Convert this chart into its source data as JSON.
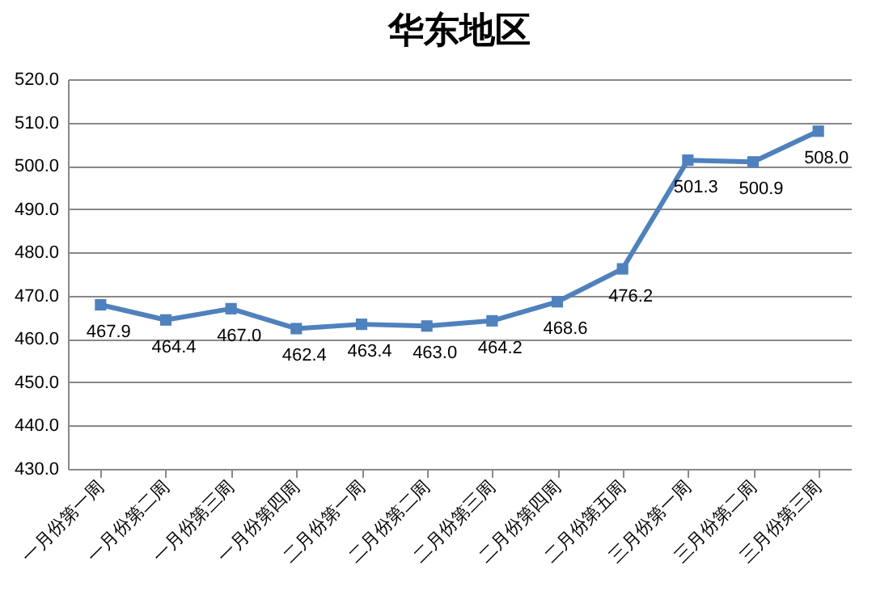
{
  "chart_data": {
    "type": "line",
    "title": "华东地区",
    "categories": [
      "一月份第一周",
      "一月份第二周",
      "一月份第三周",
      "一月份第四周",
      "二月份第一周",
      "二月份第二周",
      "二月份第三周",
      "二月份第四周",
      "二月份第五周",
      "三月份第一周",
      "三月份第二周",
      "三月份第三周"
    ],
    "series": [
      {
        "color": "#4f81bd",
        "values": [
          467.9,
          464.4,
          467.0,
          462.4,
          463.4,
          463.0,
          464.2,
          468.6,
          476.2,
          501.3,
          500.9,
          508.0
        ],
        "value_labels": [
          "467.9",
          "464.4",
          "467.0",
          "462.4",
          "463.4",
          "463.0",
          "464.2",
          "468.6",
          "476.2",
          "501.3",
          "500.9",
          "508.0"
        ]
      }
    ],
    "ylim": [
      430,
      520
    ],
    "yticks": [
      {
        "value": 430,
        "label": "430.0"
      },
      {
        "value": 440,
        "label": "440.0"
      },
      {
        "value": 450,
        "label": "450.0"
      },
      {
        "value": 460,
        "label": "460.0"
      },
      {
        "value": 470,
        "label": "470.0"
      },
      {
        "value": 480,
        "label": "480.0"
      },
      {
        "value": 490,
        "label": "490.0"
      },
      {
        "value": 500,
        "label": "500.0"
      },
      {
        "value": 510,
        "label": "510.0"
      },
      {
        "value": 520,
        "label": "520.0"
      }
    ],
    "grid": "y",
    "marker": "square",
    "line_style": "solid",
    "legend": false
  }
}
